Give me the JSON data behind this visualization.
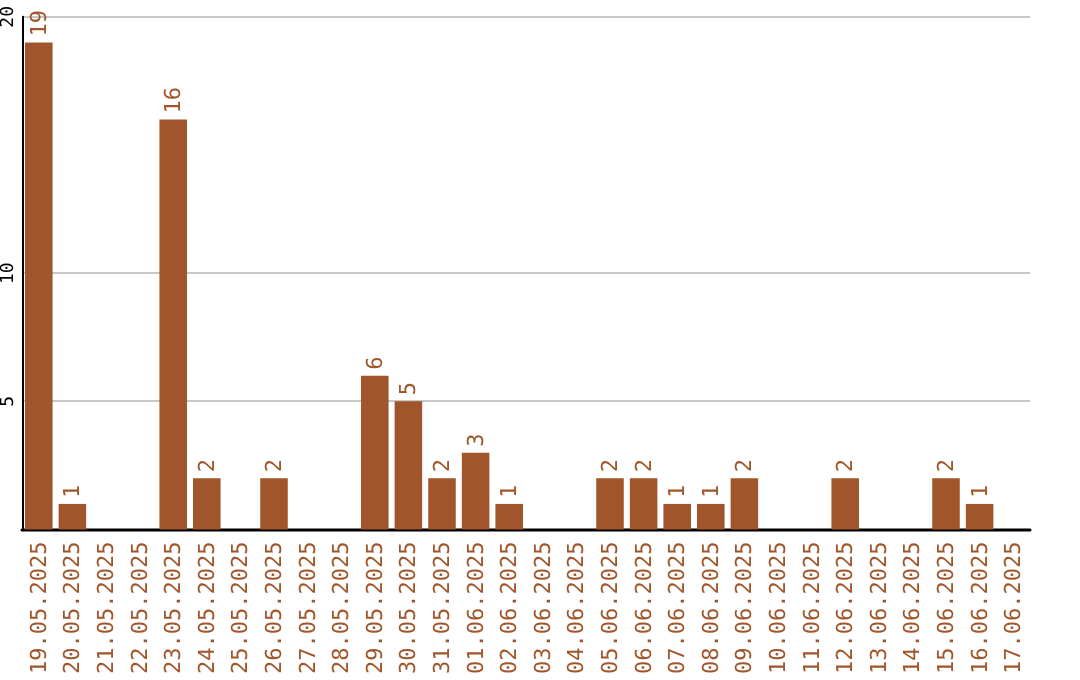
{
  "chart_data": {
    "type": "bar",
    "categories": [
      "19.05.2025",
      "20.05.2025",
      "21.05.2025",
      "22.05.2025",
      "23.05.2025",
      "24.05.2025",
      "25.05.2025",
      "26.05.2025",
      "27.05.2025",
      "28.05.2025",
      "29.05.2025",
      "30.05.2025",
      "31.05.2025",
      "01.06.2025",
      "02.06.2025",
      "03.06.2025",
      "04.06.2025",
      "05.06.2025",
      "06.06.2025",
      "07.06.2025",
      "08.06.2025",
      "09.06.2025",
      "10.06.2025",
      "11.06.2025",
      "12.06.2025",
      "13.06.2025",
      "14.06.2025",
      "15.06.2025",
      "16.06.2025",
      "17.06.2025"
    ],
    "values": [
      19,
      1,
      0,
      0,
      16,
      2,
      0,
      2,
      0,
      0,
      6,
      5,
      2,
      3,
      1,
      0,
      0,
      2,
      2,
      1,
      1,
      2,
      0,
      0,
      2,
      0,
      0,
      2,
      1,
      0
    ],
    "value_labels": [
      "19",
      "1",
      null,
      null,
      "16",
      "2",
      null,
      "2",
      null,
      null,
      "6",
      "5",
      "2",
      "3",
      "1",
      null,
      null,
      "2",
      "2",
      "1",
      "1",
      "2",
      null,
      null,
      "2",
      null,
      null,
      "2",
      "1",
      null
    ],
    "color": "#a0562a",
    "ylim": [
      0,
      20
    ],
    "yticks": [
      5,
      10,
      20
    ],
    "grid": "y"
  }
}
